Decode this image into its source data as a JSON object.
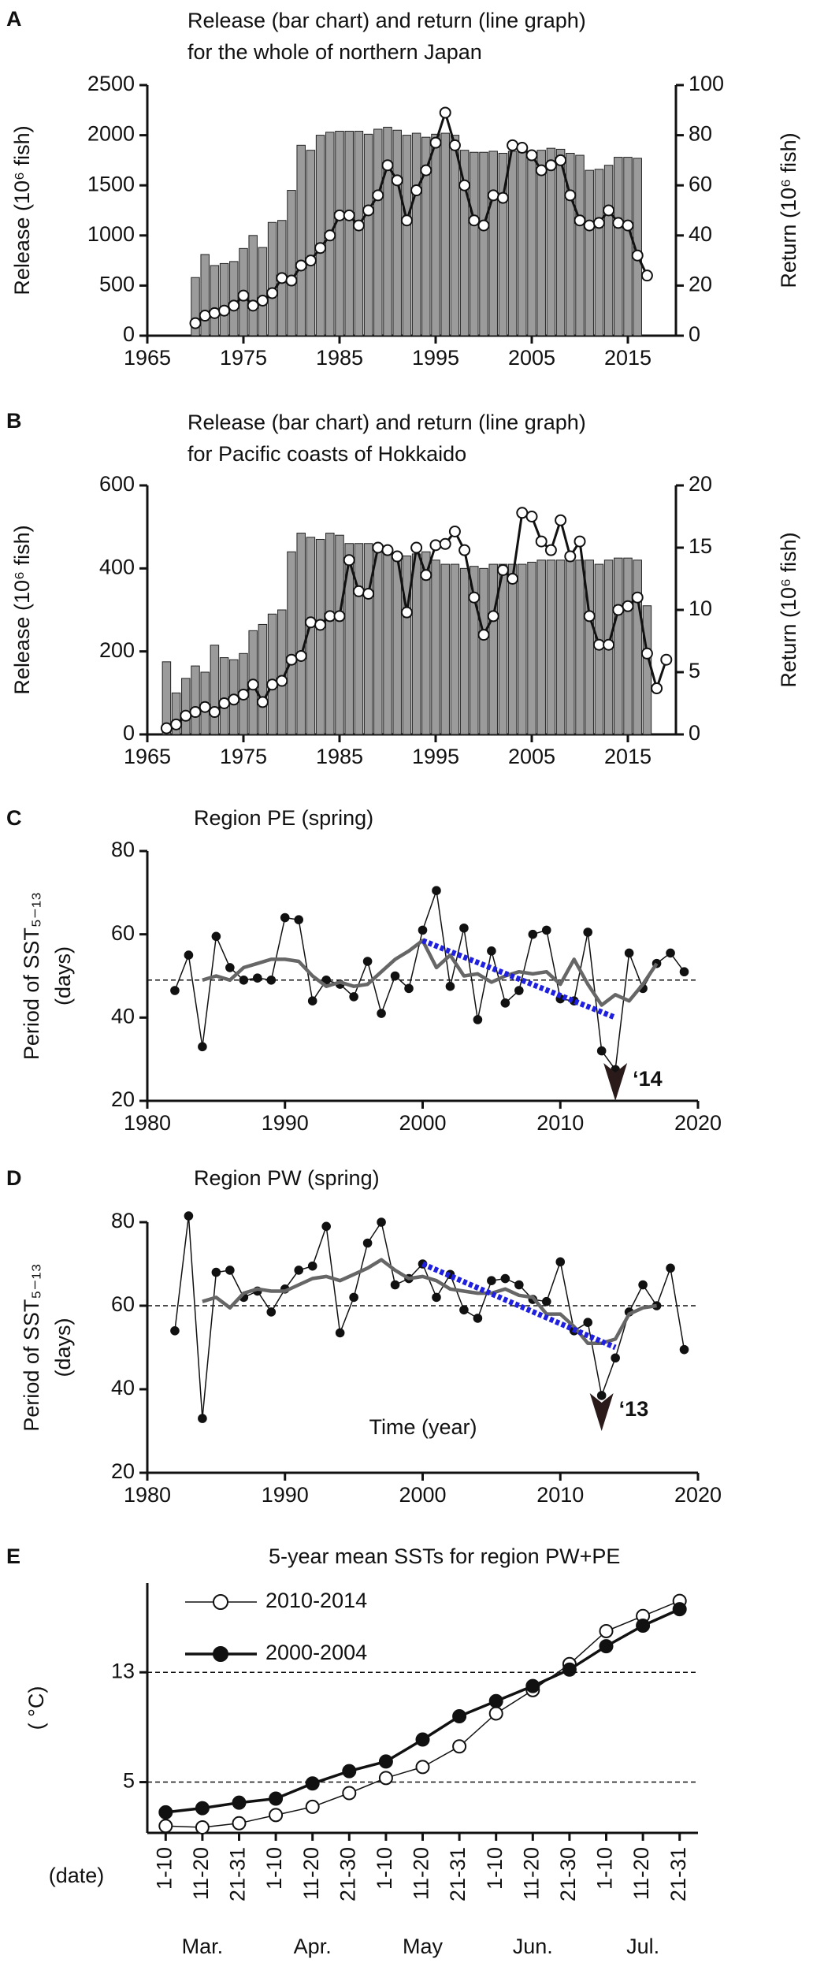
{
  "chart_data": [
    {
      "type": "combo",
      "label": "A",
      "title": [
        "Release (bar chart) and return (line graph)",
        "for the whole of northern Japan"
      ],
      "ylabel": "Release (10⁶ fish)",
      "y2label": "Return (10⁶ fish)",
      "xlim": [
        1965,
        2020
      ],
      "xticks": [
        1965,
        1975,
        1985,
        1995,
        2005,
        2015
      ],
      "ylim": [
        0,
        2500
      ],
      "yticks": [
        0,
        500,
        1000,
        1500,
        2000,
        2500
      ],
      "y2lim": [
        0,
        100
      ],
      "y2ticks": [
        0,
        20,
        40,
        60,
        80,
        100
      ],
      "series": [
        {
          "type": "bar",
          "color": "#9b9b9b",
          "x": [
            1970,
            1971,
            1972,
            1973,
            1974,
            1975,
            1976,
            1977,
            1978,
            1979,
            1980,
            1981,
            1982,
            1983,
            1984,
            1985,
            1986,
            1987,
            1988,
            1989,
            1990,
            1991,
            1992,
            1993,
            1994,
            1995,
            1996,
            1997,
            1998,
            1999,
            2000,
            2001,
            2002,
            2003,
            2004,
            2005,
            2006,
            2007,
            2008,
            2009,
            2010,
            2011,
            2012,
            2013,
            2014,
            2015,
            2016
          ],
          "values": [
            580,
            810,
            700,
            720,
            740,
            870,
            1000,
            880,
            1130,
            1150,
            1450,
            1900,
            1850,
            2000,
            2030,
            2040,
            2040,
            2040,
            2010,
            2060,
            2080,
            2050,
            2000,
            2020,
            1980,
            2010,
            2020,
            2000,
            1850,
            1830,
            1830,
            1840,
            1820,
            1840,
            1850,
            1830,
            1850,
            1870,
            1860,
            1820,
            1800,
            1650,
            1660,
            1700,
            1780,
            1780,
            1770
          ]
        },
        {
          "type": "line",
          "axis": "y2",
          "color": "#111111",
          "marker": "open",
          "x": [
            1970,
            1971,
            1972,
            1973,
            1974,
            1975,
            1976,
            1977,
            1978,
            1979,
            1980,
            1981,
            1982,
            1983,
            1984,
            1985,
            1986,
            1987,
            1988,
            1989,
            1990,
            1991,
            1992,
            1993,
            1994,
            1995,
            1996,
            1997,
            1998,
            1999,
            2000,
            2001,
            2002,
            2003,
            2004,
            2005,
            2006,
            2007,
            2008,
            2009,
            2010,
            2011,
            2012,
            2013,
            2014,
            2015,
            2016,
            2017
          ],
          "values": [
            5,
            8,
            9,
            10,
            12,
            16,
            12,
            14,
            17,
            23,
            22,
            28,
            30,
            35,
            40,
            48,
            48,
            44,
            50,
            56,
            68,
            62,
            46,
            58,
            66,
            77,
            89,
            76,
            60,
            46,
            44,
            56,
            55,
            76,
            75,
            72,
            66,
            68,
            70,
            56,
            46,
            44,
            45,
            50,
            45,
            44,
            32,
            24
          ]
        }
      ]
    },
    {
      "type": "combo",
      "label": "B",
      "title": [
        "Release (bar chart) and return (line graph)",
        "for Pacific coasts of Hokkaido"
      ],
      "ylabel": "Release (10⁶ fish)",
      "y2label": "Return (10⁶ fish)",
      "xlim": [
        1965,
        2020
      ],
      "xticks": [
        1965,
        1975,
        1985,
        1995,
        2005,
        2015
      ],
      "ylim": [
        0,
        600
      ],
      "yticks": [
        0,
        200,
        400,
        600
      ],
      "y2lim": [
        0,
        20
      ],
      "y2ticks": [
        0,
        5,
        10,
        15,
        20
      ],
      "series": [
        {
          "type": "bar",
          "color": "#9b9b9b",
          "x": [
            1967,
            1968,
            1969,
            1970,
            1971,
            1972,
            1973,
            1974,
            1975,
            1976,
            1977,
            1978,
            1979,
            1980,
            1981,
            1982,
            1983,
            1984,
            1985,
            1986,
            1987,
            1988,
            1989,
            1990,
            1991,
            1992,
            1993,
            1994,
            1995,
            1996,
            1997,
            1998,
            1999,
            2000,
            2001,
            2002,
            2003,
            2004,
            2005,
            2006,
            2007,
            2008,
            2009,
            2010,
            2011,
            2012,
            2013,
            2014,
            2015,
            2016,
            2017
          ],
          "values": [
            175,
            100,
            135,
            165,
            150,
            215,
            185,
            180,
            195,
            250,
            265,
            290,
            300,
            440,
            485,
            475,
            470,
            485,
            480,
            460,
            460,
            460,
            455,
            440,
            435,
            430,
            435,
            440,
            420,
            410,
            410,
            400,
            405,
            400,
            410,
            410,
            410,
            410,
            415,
            420,
            420,
            420,
            425,
            420,
            420,
            410,
            420,
            425,
            425,
            420,
            310
          ]
        },
        {
          "type": "line",
          "axis": "y2",
          "color": "#111111",
          "marker": "open",
          "x": [
            1967,
            1968,
            1969,
            1970,
            1971,
            1972,
            1973,
            1974,
            1975,
            1976,
            1977,
            1978,
            1979,
            1980,
            1981,
            1982,
            1983,
            1984,
            1985,
            1986,
            1987,
            1988,
            1989,
            1990,
            1991,
            1992,
            1993,
            1994,
            1995,
            1996,
            1997,
            1998,
            1999,
            2000,
            2001,
            2002,
            2003,
            2004,
            2005,
            2006,
            2007,
            2008,
            2009,
            2010,
            2011,
            2012,
            2013,
            2014,
            2015,
            2016,
            2017,
            2018,
            2019
          ],
          "values": [
            0.5,
            0.8,
            1.5,
            1.8,
            2.2,
            1.8,
            2.5,
            2.8,
            3.2,
            4,
            2.6,
            4,
            4.3,
            6,
            6.3,
            9,
            8.8,
            9.5,
            9.5,
            14,
            11.5,
            11.3,
            15,
            14.8,
            14.3,
            9.8,
            15,
            12.8,
            15.2,
            15.3,
            16.3,
            14.8,
            11,
            8,
            9.5,
            13.2,
            12.5,
            17.8,
            17.5,
            15.5,
            14.8,
            17.2,
            14.3,
            15.5,
            9.5,
            7.2,
            7.2,
            10,
            10.3,
            11,
            6.5,
            3.7,
            6
          ]
        }
      ]
    },
    {
      "type": "line",
      "label": "C",
      "title": [
        "Region PE (spring)"
      ],
      "ylabel": [
        "Period of SST₅₋₁₃",
        "(days)"
      ],
      "xlim": [
        1980,
        2020
      ],
      "xticks": [
        1980,
        1990,
        2000,
        2010,
        2020
      ],
      "ylim": [
        20,
        80
      ],
      "yticks": [
        20,
        40,
        60,
        80
      ],
      "reference_line": 49,
      "trend": {
        "color": "#1f1fe0",
        "x": [
          2000,
          2014
        ],
        "values": [
          58.5,
          40
        ]
      },
      "annotation": {
        "text": "‘14",
        "x": 2014,
        "y": 20
      },
      "series": [
        {
          "type": "line",
          "color": "#111111",
          "marker": "filled",
          "x": [
            1982,
            1983,
            1984,
            1985,
            1986,
            1987,
            1988,
            1989,
            1990,
            1991,
            1992,
            1993,
            1994,
            1995,
            1996,
            1997,
            1998,
            1999,
            2000,
            2001,
            2002,
            2003,
            2004,
            2005,
            2006,
            2007,
            2008,
            2009,
            2010,
            2011,
            2012,
            2013,
            2014,
            2015,
            2016,
            2017,
            2018,
            2019
          ],
          "values": [
            46.5,
            55,
            33,
            59.5,
            52,
            49,
            49.5,
            49,
            64,
            63.5,
            44,
            49,
            48,
            45,
            53.5,
            41,
            50,
            47,
            61,
            70.5,
            47.5,
            61.5,
            39.5,
            56,
            43.5,
            46.5,
            60,
            61,
            44.5,
            44,
            60.5,
            32,
            27.5,
            55.5,
            47,
            53,
            55.5,
            51
          ]
        },
        {
          "type": "line",
          "color": "#666666",
          "marker": "none",
          "x": [
            1984,
            1985,
            1986,
            1987,
            1988,
            1989,
            1990,
            1991,
            1992,
            1993,
            1994,
            1995,
            1996,
            1997,
            1998,
            1999,
            2000,
            2001,
            2002,
            2003,
            2004,
            2005,
            2006,
            2007,
            2008,
            2009,
            2010,
            2011,
            2012,
            2013,
            2014,
            2015,
            2016,
            2017
          ],
          "values": [
            49,
            50,
            49,
            52,
            53,
            54,
            54,
            53.5,
            50,
            47.5,
            48.5,
            47.5,
            48,
            51,
            54,
            56,
            58.5,
            52,
            55,
            50,
            50.5,
            48.5,
            50,
            51,
            50.5,
            51,
            48,
            54,
            48,
            43,
            45.5,
            44,
            48,
            53
          ]
        }
      ]
    },
    {
      "type": "line",
      "label": "D",
      "title": [
        "Region PW (spring)"
      ],
      "ylabel": [
        "Period of SST₅₋₁₃",
        "(days)"
      ],
      "xlabel": "Time (year)",
      "xlim": [
        1980,
        2020
      ],
      "xticks": [
        1980,
        1990,
        2000,
        2010,
        2020
      ],
      "ylim": [
        20,
        80
      ],
      "yticks": [
        20,
        40,
        60,
        80
      ],
      "reference_line": 60,
      "trend": {
        "color": "#1f1fe0",
        "x": [
          2000,
          2014
        ],
        "values": [
          70,
          50
        ]
      },
      "annotation": {
        "text": "‘13",
        "x": 2013,
        "y": 30
      },
      "series": [
        {
          "type": "line",
          "color": "#111111",
          "marker": "filled",
          "x": [
            1982,
            1983,
            1984,
            1985,
            1986,
            1987,
            1988,
            1989,
            1990,
            1991,
            1992,
            1993,
            1994,
            1995,
            1996,
            1997,
            1998,
            1999,
            2000,
            2001,
            2002,
            2003,
            2004,
            2005,
            2006,
            2007,
            2008,
            2009,
            2010,
            2011,
            2012,
            2013,
            2014,
            2015,
            2016,
            2017,
            2018,
            2019
          ],
          "values": [
            54,
            81.5,
            33,
            68,
            68.5,
            62,
            63.5,
            58.5,
            64,
            68.5,
            69.5,
            79,
            53.5,
            62,
            75,
            80,
            65,
            66.5,
            70,
            62,
            67.5,
            59,
            57,
            66,
            66.5,
            65,
            61.5,
            61,
            70.5,
            54,
            56,
            38.5,
            47.5,
            58.5,
            65,
            60,
            69,
            49.5
          ]
        },
        {
          "type": "line",
          "color": "#666666",
          "marker": "none",
          "x": [
            1984,
            1985,
            1986,
            1987,
            1988,
            1989,
            1990,
            1991,
            1992,
            1993,
            1994,
            1995,
            1996,
            1997,
            1998,
            1999,
            2000,
            2001,
            2002,
            2003,
            2004,
            2005,
            2006,
            2007,
            2008,
            2009,
            2010,
            2011,
            2012,
            2013,
            2014,
            2015,
            2016,
            2017
          ],
          "values": [
            61,
            62,
            59.5,
            63,
            64,
            63.5,
            63.5,
            65,
            66.5,
            67,
            66,
            67.5,
            69,
            71,
            68.5,
            66.5,
            67,
            66,
            64,
            63.5,
            63,
            63,
            64,
            62.5,
            62,
            58,
            58,
            55,
            51,
            51,
            52,
            58,
            59.5,
            60
          ]
        }
      ]
    },
    {
      "type": "line",
      "label": "E",
      "title": [
        "5-year mean SSTs for region PW+PE"
      ],
      "ylabel": "( °C)",
      "xlabel": "(date)",
      "categories": [
        "1-10",
        "11-20",
        "21-31",
        "1-10",
        "11-20",
        "21-30",
        "1-10",
        "11-20",
        "21-31",
        "1-10",
        "11-20",
        "21-30",
        "1-10",
        "11-20",
        "21-31"
      ],
      "months": [
        "Mar.",
        "Apr.",
        "May",
        "Jun.",
        "Jul."
      ],
      "ylim": [
        1.3,
        19.5
      ],
      "yticks": [
        5,
        13
      ],
      "grid": true,
      "legend": "upper left",
      "series": [
        {
          "name": "2010-2014",
          "type": "line",
          "color": "#111111",
          "marker": "open",
          "values": [
            1.8,
            1.7,
            2.0,
            2.6,
            3.2,
            4.2,
            5.3,
            6.1,
            7.6,
            10.0,
            11.7,
            13.6,
            16.0,
            17.1,
            18.2
          ]
        },
        {
          "name": "2000-2004",
          "type": "line",
          "color": "#111111",
          "marker": "filled",
          "values": [
            2.8,
            3.1,
            3.5,
            3.8,
            4.9,
            5.8,
            6.5,
            8.1,
            9.8,
            10.9,
            12.0,
            13.2,
            14.9,
            16.4,
            17.6
          ]
        }
      ]
    }
  ]
}
